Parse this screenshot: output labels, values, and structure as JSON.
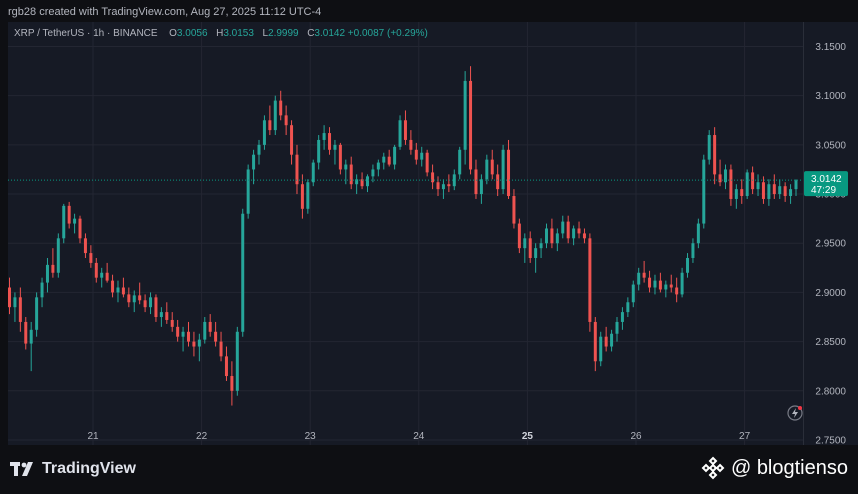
{
  "header": {
    "credit": "rgb28 created with TradingView.com, Aug 27, 2025 11:12 UTC-4"
  },
  "legend": {
    "symbol": "XRP / TetherUS · 1h · BINANCE",
    "o_label": "O",
    "o": "3.0056",
    "h_label": "H",
    "h": "3.0153",
    "l_label": "L",
    "l": "2.9999",
    "c_label": "C",
    "c": "3.0142",
    "change": "+0.0087 (+0.29%)"
  },
  "price_tag": {
    "price": "3.0142",
    "countdown": "47:29",
    "color": "#089981"
  },
  "colors": {
    "up": "#26a69a",
    "down": "#ef5350",
    "background": "#161a25",
    "grid": "#232632"
  },
  "footer": {
    "brand": "TradingView",
    "watermark": "@ blogtienso"
  },
  "chart_data": {
    "type": "candlestick",
    "symbol": "XRP / TetherUS",
    "interval": "1h",
    "ylim": [
      2.7449,
      3.1749
    ],
    "y_ticks": [
      "3.1500",
      "3.1000",
      "3.0500",
      "3.0000",
      "2.9500",
      "2.9000",
      "2.8500",
      "2.8000",
      "2.7500"
    ],
    "x_ticks": [
      "21",
      "22",
      "23",
      "24",
      "25",
      "26",
      "27"
    ],
    "x_tick_days": [
      21,
      22,
      23,
      24,
      25,
      26,
      27
    ],
    "last_price": 3.0142,
    "series": [
      {
        "name": "",
        "ohlc": [
          [
            2.905,
            2.915,
            2.878,
            2.885
          ],
          [
            2.885,
            2.9,
            2.87,
            2.895
          ],
          [
            2.895,
            2.905,
            2.86,
            2.87
          ],
          [
            2.87,
            2.875,
            2.842,
            2.848
          ],
          [
            2.848,
            2.87,
            2.82,
            2.862
          ],
          [
            2.862,
            2.9,
            2.855,
            2.895
          ],
          [
            2.895,
            2.915,
            2.885,
            2.91
          ],
          [
            2.91,
            2.935,
            2.9,
            2.928
          ],
          [
            2.928,
            2.945,
            2.915,
            2.92
          ],
          [
            2.92,
            2.96,
            2.915,
            2.955
          ],
          [
            2.955,
            2.99,
            2.95,
            2.988
          ],
          [
            2.988,
            2.992,
            2.965,
            2.97
          ],
          [
            2.97,
            2.98,
            2.96,
            2.975
          ],
          [
            2.975,
            2.978,
            2.95,
            2.955
          ],
          [
            2.955,
            2.96,
            2.935,
            2.94
          ],
          [
            2.94,
            2.948,
            2.925,
            2.93
          ],
          [
            2.93,
            2.935,
            2.91,
            2.915
          ],
          [
            2.915,
            2.925,
            2.905,
            2.92
          ],
          [
            2.92,
            2.93,
            2.91,
            2.912
          ],
          [
            2.912,
            2.918,
            2.895,
            2.9
          ],
          [
            2.9,
            2.912,
            2.89,
            2.905
          ],
          [
            2.905,
            2.915,
            2.895,
            2.898
          ],
          [
            2.898,
            2.905,
            2.885,
            2.89
          ],
          [
            2.89,
            2.902,
            2.88,
            2.897
          ],
          [
            2.897,
            2.91,
            2.888,
            2.892
          ],
          [
            2.892,
            2.898,
            2.88,
            2.885
          ],
          [
            2.885,
            2.9,
            2.878,
            2.895
          ],
          [
            2.895,
            2.898,
            2.87,
            2.875
          ],
          [
            2.875,
            2.885,
            2.865,
            2.88
          ],
          [
            2.88,
            2.89,
            2.868,
            2.872
          ],
          [
            2.872,
            2.88,
            2.86,
            2.865
          ],
          [
            2.865,
            2.872,
            2.85,
            2.855
          ],
          [
            2.855,
            2.865,
            2.84,
            2.86
          ],
          [
            2.86,
            2.87,
            2.845,
            2.85
          ],
          [
            2.85,
            2.86,
            2.835,
            2.845
          ],
          [
            2.845,
            2.858,
            2.83,
            2.852
          ],
          [
            2.852,
            2.875,
            2.848,
            2.87
          ],
          [
            2.87,
            2.878,
            2.855,
            2.86
          ],
          [
            2.86,
            2.87,
            2.845,
            2.85
          ],
          [
            2.85,
            2.86,
            2.83,
            2.835
          ],
          [
            2.835,
            2.845,
            2.81,
            2.815
          ],
          [
            2.815,
            2.83,
            2.785,
            2.8
          ],
          [
            2.8,
            2.865,
            2.795,
            2.86
          ],
          [
            2.86,
            2.985,
            2.855,
            2.98
          ],
          [
            2.98,
            3.03,
            2.975,
            3.025
          ],
          [
            3.025,
            3.045,
            3.01,
            3.04
          ],
          [
            3.04,
            3.055,
            3.03,
            3.05
          ],
          [
            3.05,
            3.08,
            3.045,
            3.075
          ],
          [
            3.075,
            3.09,
            3.06,
            3.065
          ],
          [
            3.065,
            3.1,
            3.06,
            3.095
          ],
          [
            3.095,
            3.105,
            3.075,
            3.08
          ],
          [
            3.08,
            3.09,
            3.06,
            3.07
          ],
          [
            3.07,
            3.075,
            3.03,
            3.04
          ],
          [
            3.04,
            3.05,
            3.0,
            3.01
          ],
          [
            3.01,
            3.02,
            2.975,
            2.985
          ],
          [
            2.985,
            3.015,
            2.98,
            3.012
          ],
          [
            3.012,
            3.035,
            3.008,
            3.032
          ],
          [
            3.032,
            3.06,
            3.025,
            3.055
          ],
          [
            3.055,
            3.07,
            3.045,
            3.062
          ],
          [
            3.062,
            3.068,
            3.04,
            3.045
          ],
          [
            3.045,
            3.055,
            3.03,
            3.05
          ],
          [
            3.05,
            3.052,
            3.02,
            3.025
          ],
          [
            3.025,
            3.035,
            3.01,
            3.03
          ],
          [
            3.03,
            3.038,
            3.005,
            3.01
          ],
          [
            3.01,
            3.02,
            3.0,
            3.015
          ],
          [
            3.015,
            3.022,
            3.005,
            3.008
          ],
          [
            3.008,
            3.02,
            3.002,
            3.018
          ],
          [
            3.018,
            3.03,
            3.012,
            3.025
          ],
          [
            3.025,
            3.035,
            3.018,
            3.032
          ],
          [
            3.032,
            3.042,
            3.025,
            3.038
          ],
          [
            3.038,
            3.045,
            3.028,
            3.03
          ],
          [
            3.03,
            3.05,
            3.025,
            3.048
          ],
          [
            3.048,
            3.08,
            3.045,
            3.075
          ],
          [
            3.075,
            3.085,
            3.05,
            3.055
          ],
          [
            3.055,
            3.065,
            3.04,
            3.045
          ],
          [
            3.045,
            3.052,
            3.03,
            3.035
          ],
          [
            3.035,
            3.048,
            3.028,
            3.042
          ],
          [
            3.042,
            3.045,
            3.018,
            3.022
          ],
          [
            3.022,
            3.03,
            3.005,
            3.012
          ],
          [
            3.012,
            3.018,
            2.998,
            3.005
          ],
          [
            3.005,
            3.015,
            2.995,
            3.01
          ],
          [
            3.01,
            3.02,
            3.002,
            3.008
          ],
          [
            3.008,
            3.025,
            3.004,
            3.02
          ],
          [
            3.02,
            3.048,
            3.015,
            3.045
          ],
          [
            3.045,
            3.125,
            3.03,
            3.115
          ],
          [
            3.115,
            3.13,
            3.02,
            3.025
          ],
          [
            3.025,
            3.035,
            2.995,
            3.0
          ],
          [
            3.0,
            3.02,
            2.99,
            3.015
          ],
          [
            3.015,
            3.04,
            3.01,
            3.035
          ],
          [
            3.035,
            3.045,
            3.015,
            3.02
          ],
          [
            3.02,
            3.03,
            2.998,
            3.005
          ],
          [
            3.005,
            3.05,
            3.0,
            3.045
          ],
          [
            3.045,
            3.055,
            2.995,
            2.998
          ],
          [
            2.998,
            3.005,
            2.965,
            2.97
          ],
          [
            2.97,
            2.975,
            2.94,
            2.945
          ],
          [
            2.945,
            2.96,
            2.93,
            2.955
          ],
          [
            2.955,
            2.962,
            2.93,
            2.935
          ],
          [
            2.935,
            2.95,
            2.92,
            2.945
          ],
          [
            2.945,
            2.955,
            2.935,
            2.95
          ],
          [
            2.95,
            2.97,
            2.945,
            2.965
          ],
          [
            2.965,
            2.975,
            2.945,
            2.95
          ],
          [
            2.95,
            2.965,
            2.942,
            2.96
          ],
          [
            2.96,
            2.978,
            2.955,
            2.972
          ],
          [
            2.972,
            2.978,
            2.95,
            2.955
          ],
          [
            2.955,
            2.968,
            2.948,
            2.965
          ],
          [
            2.965,
            2.972,
            2.955,
            2.96
          ],
          [
            2.96,
            2.965,
            2.95,
            2.955
          ],
          [
            2.955,
            2.96,
            2.86,
            2.87
          ],
          [
            2.87,
            2.875,
            2.82,
            2.83
          ],
          [
            2.83,
            2.86,
            2.825,
            2.855
          ],
          [
            2.855,
            2.865,
            2.84,
            2.845
          ],
          [
            2.845,
            2.862,
            2.84,
            2.858
          ],
          [
            2.858,
            2.875,
            2.85,
            2.87
          ],
          [
            2.87,
            2.885,
            2.862,
            2.88
          ],
          [
            2.88,
            2.895,
            2.875,
            2.89
          ],
          [
            2.89,
            2.912,
            2.885,
            2.908
          ],
          [
            2.908,
            2.925,
            2.902,
            2.92
          ],
          [
            2.92,
            2.932,
            2.91,
            2.915
          ],
          [
            2.915,
            2.922,
            2.9,
            2.905
          ],
          [
            2.905,
            2.918,
            2.898,
            2.912
          ],
          [
            2.912,
            2.92,
            2.9,
            2.903
          ],
          [
            2.903,
            2.912,
            2.895,
            2.908
          ],
          [
            2.908,
            2.918,
            2.9,
            2.905
          ],
          [
            2.905,
            2.915,
            2.89,
            2.898
          ],
          [
            2.898,
            2.925,
            2.895,
            2.92
          ],
          [
            2.92,
            2.94,
            2.915,
            2.935
          ],
          [
            2.935,
            2.955,
            2.93,
            2.95
          ],
          [
            2.95,
            2.975,
            2.945,
            2.97
          ],
          [
            2.97,
            3.04,
            2.965,
            3.035
          ],
          [
            3.035,
            3.065,
            3.03,
            3.06
          ],
          [
            3.06,
            3.068,
            3.01,
            3.02
          ],
          [
            3.02,
            3.035,
            3.008,
            3.012
          ],
          [
            3.012,
            3.03,
            3.005,
            3.025
          ],
          [
            3.025,
            3.03,
            2.988,
            2.995
          ],
          [
            2.995,
            3.01,
            2.985,
            3.005
          ],
          [
            3.005,
            3.015,
            2.99,
            2.998
          ],
          [
            2.998,
            3.025,
            2.995,
            3.022
          ],
          [
            3.022,
            3.028,
            3.0,
            3.005
          ],
          [
            3.005,
            3.02,
            2.998,
            3.012
          ],
          [
            3.012,
            3.018,
            2.99,
            2.995
          ],
          [
            2.995,
            3.015,
            2.988,
            3.01
          ],
          [
            3.01,
            3.02,
            2.995,
            3.0
          ],
          [
            3.0,
            3.015,
            2.995,
            3.008
          ],
          [
            3.008,
            3.012,
            2.992,
            2.998
          ],
          [
            2.998,
            3.01,
            2.99,
            3.005
          ],
          [
            3.005,
            3.015,
            2.998,
            3.014
          ]
        ]
      }
    ]
  }
}
